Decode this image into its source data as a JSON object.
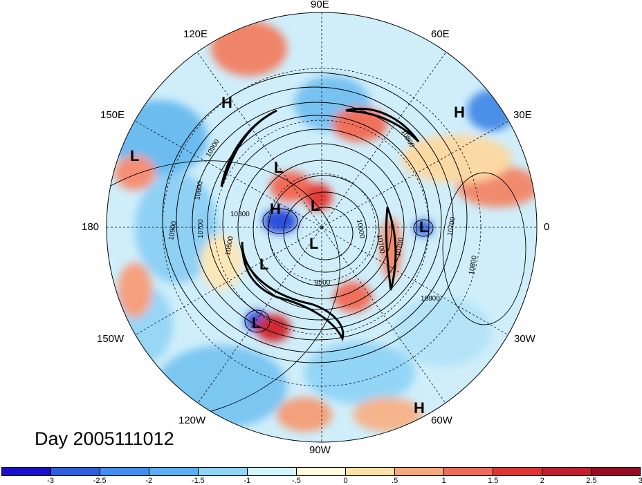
{
  "title": "Day 2005111012",
  "longitude_labels": [
    {
      "id": "90e",
      "text": "90E"
    },
    {
      "id": "120e",
      "text": "120E"
    },
    {
      "id": "60e",
      "text": "60E"
    },
    {
      "id": "150e",
      "text": "150E"
    },
    {
      "id": "30e",
      "text": "30E"
    },
    {
      "id": "180",
      "text": "180"
    },
    {
      "id": "0",
      "text": "0"
    },
    {
      "id": "150w",
      "text": "150W"
    },
    {
      "id": "30w",
      "text": "30W"
    },
    {
      "id": "120w",
      "text": "120W"
    },
    {
      "id": "60w",
      "text": "60W"
    },
    {
      "id": "90w",
      "text": "90W"
    }
  ],
  "pressure_centers": [
    {
      "id": "h1",
      "text": "H"
    },
    {
      "id": "h2",
      "text": "H"
    },
    {
      "id": "l1",
      "text": "L"
    },
    {
      "id": "l2",
      "text": "L"
    },
    {
      "id": "h3",
      "text": "H"
    },
    {
      "id": "l3",
      "text": "L"
    },
    {
      "id": "l4",
      "text": "L"
    },
    {
      "id": "l5",
      "text": "L"
    },
    {
      "id": "l6",
      "text": "L"
    },
    {
      "id": "l7",
      "text": "L"
    },
    {
      "id": "h4",
      "text": "H"
    }
  ],
  "contour_labels": [
    {
      "id": "c1",
      "text": "10900"
    },
    {
      "id": "c2",
      "text": "10800"
    },
    {
      "id": "c3",
      "text": "10800"
    },
    {
      "id": "c4",
      "text": "10700"
    },
    {
      "id": "c5",
      "text": "10600"
    },
    {
      "id": "c6",
      "text": "10300"
    },
    {
      "id": "c7",
      "text": "10900"
    },
    {
      "id": "c8",
      "text": "10700"
    },
    {
      "id": "c9",
      "text": "9500"
    },
    {
      "id": "c10",
      "text": "10800"
    },
    {
      "id": "c11",
      "text": "10700"
    },
    {
      "id": "c12",
      "text": "10700"
    },
    {
      "id": "c13",
      "text": "10800"
    },
    {
      "id": "c14",
      "text": "10000"
    }
  ],
  "colorbar": {
    "colors": [
      "#1a0fcf",
      "#2b5fe0",
      "#3f8ff0",
      "#5ab0f5",
      "#8cd6fa",
      "#d2f3fb",
      "#fdfbd9",
      "#fde3a3",
      "#f9a877",
      "#f06b5b",
      "#e23232",
      "#c41d2f",
      "#9b0b20"
    ],
    "ticks": [
      "-3",
      "-2.5",
      "-2",
      "-1.5",
      "-1",
      "-.5",
      "0",
      ".5",
      "1",
      "1.5",
      "2",
      "2.5",
      "3"
    ]
  }
}
